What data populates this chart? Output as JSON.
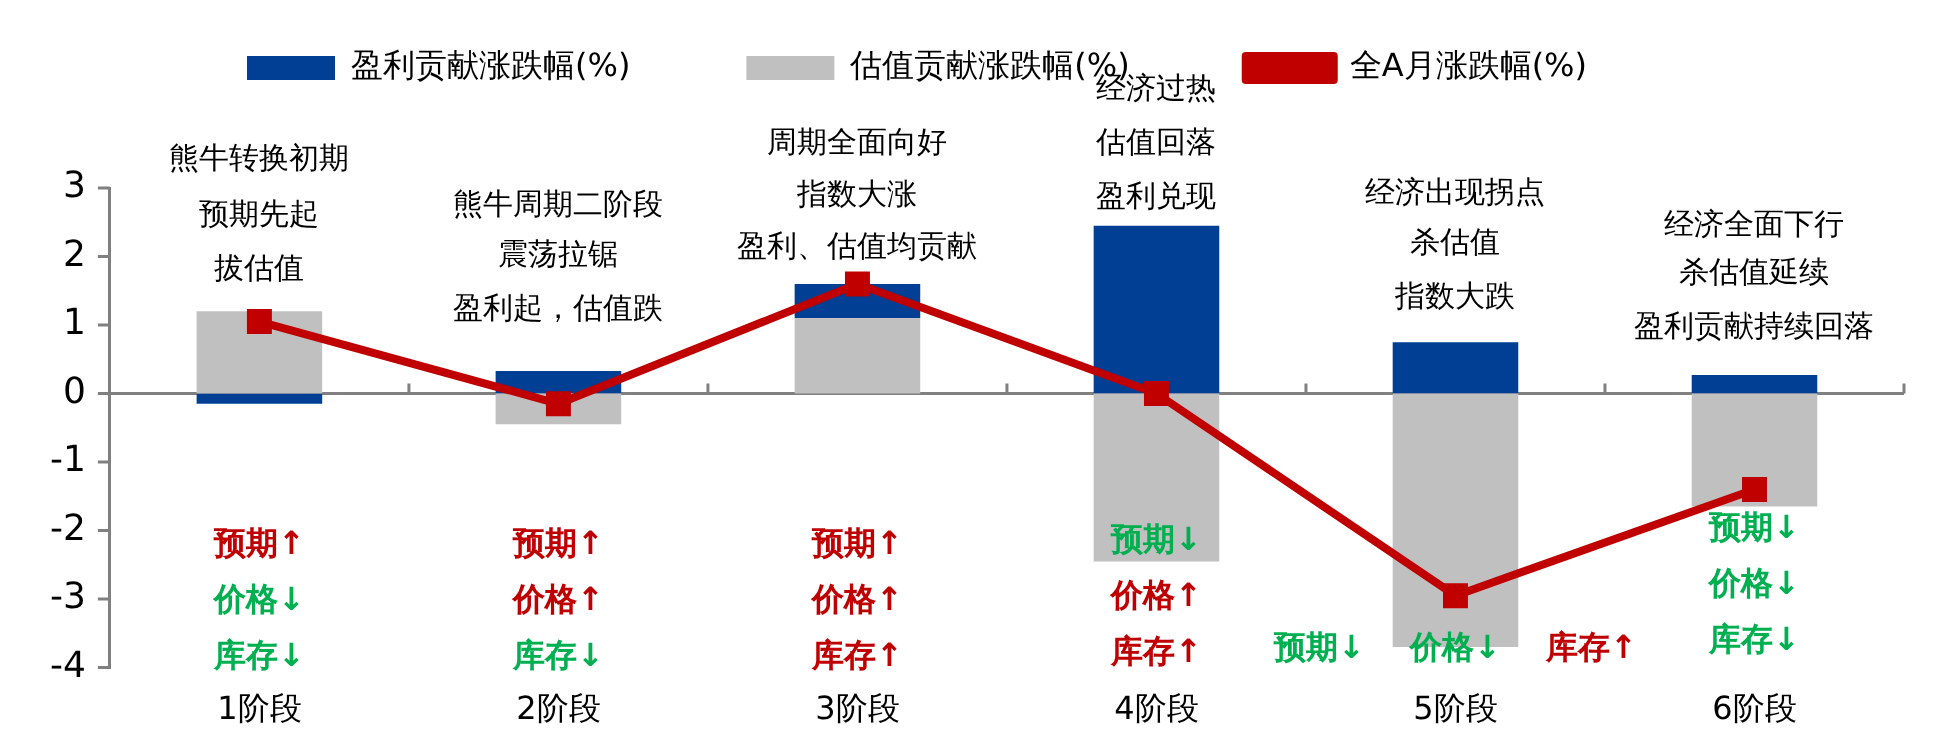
{
  "chart_data": {
    "type": "bar",
    "stacked": true,
    "categories": [
      "1阶段",
      "2阶段",
      "3阶段",
      "4阶段",
      "5阶段",
      "6阶段"
    ],
    "series": [
      {
        "name": "估值贡献涨跌幅(%)",
        "color": "#c0c0c0",
        "values": [
          1.2,
          -0.45,
          1.1,
          -2.45,
          -3.7,
          -1.65
        ]
      },
      {
        "name": "盈利贡献涨跌幅(%)",
        "color": "#003f94",
        "values": [
          -0.15,
          0.33,
          0.5,
          2.45,
          0.75,
          0.27
        ]
      },
      {
        "name": "全A月涨跌幅(%)",
        "type": "line",
        "color": "#c00000",
        "marker": "square",
        "values": [
          1.05,
          -0.15,
          1.6,
          0.0,
          -2.95,
          -1.4
        ]
      }
    ],
    "ylim": [
      -4,
      3
    ],
    "yticks": [
      -4,
      -3,
      -2,
      -1,
      0,
      1,
      2,
      3
    ],
    "legend": "top",
    "annotations": [
      "熊牛转换初期",
      "预期先起",
      "拔估值",
      "熊牛周期二阶段",
      "震荡拉锯",
      "盈利起，估值跌",
      "周期全面向好",
      "指数大涨",
      "盈利、估值均贡献",
      "经济过热",
      "估值回落",
      "盈利兑现",
      "经济出现拐点",
      "杀估值",
      "指数大跌",
      "经济全面下行",
      "杀估值延续",
      "盈利贡献持续回落",
      "预期↑",
      "价格↓",
      "库存↓",
      "预期↑",
      "价格↑",
      "库存↓",
      "预期↑",
      "价格↑",
      "库存↑",
      "预期↓",
      "价格↑",
      "库存↑",
      "预期↓",
      "价格↓",
      "库存↑",
      "预期↓",
      "价格↓",
      "库存↓"
    ]
  }
}
